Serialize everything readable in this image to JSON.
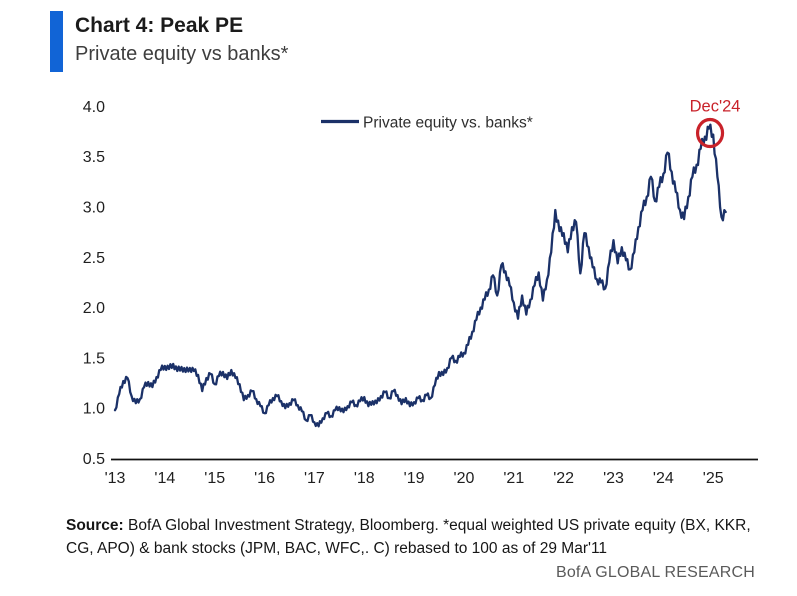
{
  "header": {
    "title": "Chart 4: Peak PE",
    "subtitle": "Private equity vs banks*",
    "accent_color": "#1164d6"
  },
  "chart_data": {
    "type": "line",
    "title": "Chart 4: Peak PE",
    "subtitle": "Private equity vs banks*",
    "legend": {
      "label": "Private equity vs. banks*",
      "position": "top-center"
    },
    "line_color": "#1b3168",
    "axis_color": "#111111",
    "tick_color": "#1f1f1f",
    "grid": false,
    "ylim": [
      0.5,
      4.0
    ],
    "y_ticks": [
      "4.0",
      "3.5",
      "3.0",
      "2.5",
      "2.0",
      "1.5",
      "1.0",
      "0.5"
    ],
    "x_ticks": [
      "'13",
      "'14",
      "'15",
      "'16",
      "'17",
      "'18",
      "'19",
      "'20",
      "'21",
      "'22",
      "'23",
      "'24",
      "'25"
    ],
    "annotation": {
      "label": "Dec'24",
      "x": "2024-12",
      "value": 3.78,
      "color": "#c9222a"
    },
    "series": [
      {
        "name": "Private equity vs. banks*",
        "start": "2013-01",
        "interval": "monthly",
        "values": [
          0.98,
          1.14,
          1.27,
          1.3,
          1.12,
          1.05,
          1.09,
          1.21,
          1.26,
          1.21,
          1.31,
          1.38,
          1.42,
          1.39,
          1.44,
          1.37,
          1.41,
          1.36,
          1.4,
          1.37,
          1.33,
          1.17,
          1.3,
          1.34,
          1.24,
          1.32,
          1.36,
          1.29,
          1.38,
          1.3,
          1.24,
          1.08,
          1.13,
          1.17,
          1.09,
          1.02,
          0.95,
          1.03,
          1.1,
          1.12,
          1.07,
          1.0,
          1.05,
          1.08,
          1.03,
          0.97,
          0.88,
          0.93,
          0.86,
          0.82,
          0.9,
          0.95,
          0.92,
          0.98,
          1.01,
          0.96,
          1.02,
          1.06,
          1.03,
          1.07,
          1.11,
          1.02,
          1.07,
          1.05,
          1.12,
          1.16,
          1.1,
          1.17,
          1.13,
          1.04,
          1.1,
          1.02,
          1.06,
          1.1,
          1.08,
          1.13,
          1.1,
          1.23,
          1.36,
          1.33,
          1.4,
          1.5,
          1.47,
          1.51,
          1.55,
          1.63,
          1.76,
          1.88,
          2.0,
          2.08,
          2.18,
          2.32,
          2.12,
          2.42,
          2.36,
          2.22,
          2.05,
          1.89,
          2.12,
          1.93,
          2.08,
          2.22,
          2.35,
          2.07,
          2.28,
          2.55,
          2.97,
          2.76,
          2.74,
          2.55,
          2.8,
          2.85,
          2.34,
          2.74,
          2.6,
          2.4,
          2.28,
          2.25,
          2.19,
          2.45,
          2.67,
          2.44,
          2.6,
          2.47,
          2.38,
          2.55,
          2.8,
          2.97,
          3.1,
          3.3,
          3.06,
          3.2,
          3.33,
          3.54,
          3.35,
          3.15,
          2.97,
          2.88,
          3.1,
          3.3,
          3.42,
          3.58,
          3.7,
          3.78,
          3.72,
          3.3,
          2.9,
          2.95
        ]
      }
    ]
  },
  "footer": {
    "source_label": "Source:",
    "source_text": " BofA Global Investment Strategy, Bloomberg. *equal weighted US private equity (BX, KKR, CG, APO) & bank stocks (JPM, BAC, WFC,. C) rebased to 100 as of 29 Mar'11",
    "brand": "BofA GLOBAL RESEARCH"
  }
}
